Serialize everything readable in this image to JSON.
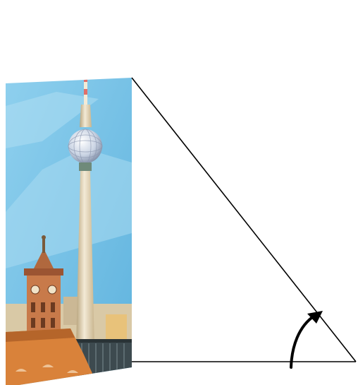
{
  "diagram": {
    "illustration": {
      "subject": "berlin-tv-tower-cityscape",
      "colors": {
        "sky": "#7cc4e6",
        "sky_light": "#a9daf0",
        "tower_shaft": "#e8dcc0",
        "tower_shade": "#b8a47c",
        "antenna_red": "#e0706a",
        "sphere": "#c9d3e3",
        "town_hall_brick": "#c87a4a",
        "roof_orange": "#d9823a",
        "railing": "#3d4a4f"
      }
    },
    "triangle": {
      "stroke_color": "#000000",
      "shape": "right-triangle"
    },
    "angle_marker": {
      "type": "curved-arrow",
      "color": "#000000"
    }
  }
}
